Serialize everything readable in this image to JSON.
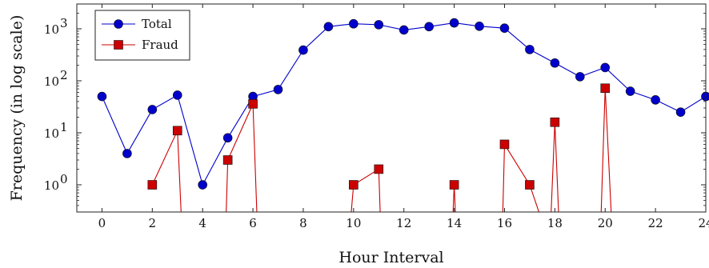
{
  "chart_data": {
    "type": "line",
    "xlabel": "Hour Interval",
    "ylabel": "Frequency (in log scale)",
    "y_scale": "log",
    "xlim": [
      -1,
      24
    ],
    "ylim": [
      0.3,
      3000
    ],
    "x_ticks": [
      0,
      2,
      4,
      6,
      8,
      10,
      12,
      14,
      16,
      18,
      20,
      22,
      24
    ],
    "x_tick_labels": [
      "0",
      "2",
      "4",
      "6",
      "8",
      "10",
      "12",
      "14",
      "16",
      "18",
      "20",
      "22",
      "24"
    ],
    "y_ticks": [
      1,
      10,
      100,
      1000
    ],
    "y_tick_labels": [
      "10",
      "10",
      "10",
      "10"
    ],
    "y_tick_exponents": [
      "0",
      "1",
      "2",
      "3"
    ],
    "grid": false,
    "legend_position": "top-left",
    "series": [
      {
        "name": "Total",
        "color": "#0000cc",
        "marker": "circle",
        "points": [
          [
            0,
            50
          ],
          [
            1,
            4
          ],
          [
            2,
            28
          ],
          [
            3,
            53
          ],
          [
            4,
            1
          ],
          [
            5,
            8
          ],
          [
            6,
            50
          ],
          [
            7,
            68
          ],
          [
            8,
            390
          ],
          [
            9,
            1100
          ],
          [
            10,
            1250
          ],
          [
            11,
            1200
          ],
          [
            12,
            950
          ],
          [
            13,
            1100
          ],
          [
            14,
            1300
          ],
          [
            15,
            1120
          ],
          [
            16,
            1030
          ],
          [
            17,
            400
          ],
          [
            18,
            220
          ],
          [
            19,
            120
          ],
          [
            20,
            180
          ],
          [
            21,
            63
          ],
          [
            22,
            43
          ],
          [
            23,
            25
          ],
          [
            24,
            50
          ]
        ]
      },
      {
        "name": "Fraud",
        "color": "#cc0000",
        "marker": "square",
        "points": [
          [
            2,
            1
          ],
          [
            3,
            11
          ],
          [
            3.2,
            0
          ],
          [
            4.9,
            0
          ],
          [
            5,
            3
          ],
          [
            6,
            36
          ],
          [
            6.2,
            0
          ],
          [
            9.8,
            0
          ],
          [
            10,
            1
          ],
          [
            11,
            2
          ],
          [
            11.1,
            0
          ],
          [
            13.9,
            0
          ],
          [
            14,
            1
          ],
          [
            14.1,
            0
          ],
          [
            15.9,
            0
          ],
          [
            16,
            6
          ],
          [
            17,
            1
          ],
          [
            17.8,
            0
          ],
          [
            18,
            16
          ],
          [
            18.2,
            0
          ],
          [
            19.8,
            0
          ],
          [
            20,
            72
          ],
          [
            20.3,
            0
          ]
        ]
      }
    ]
  }
}
